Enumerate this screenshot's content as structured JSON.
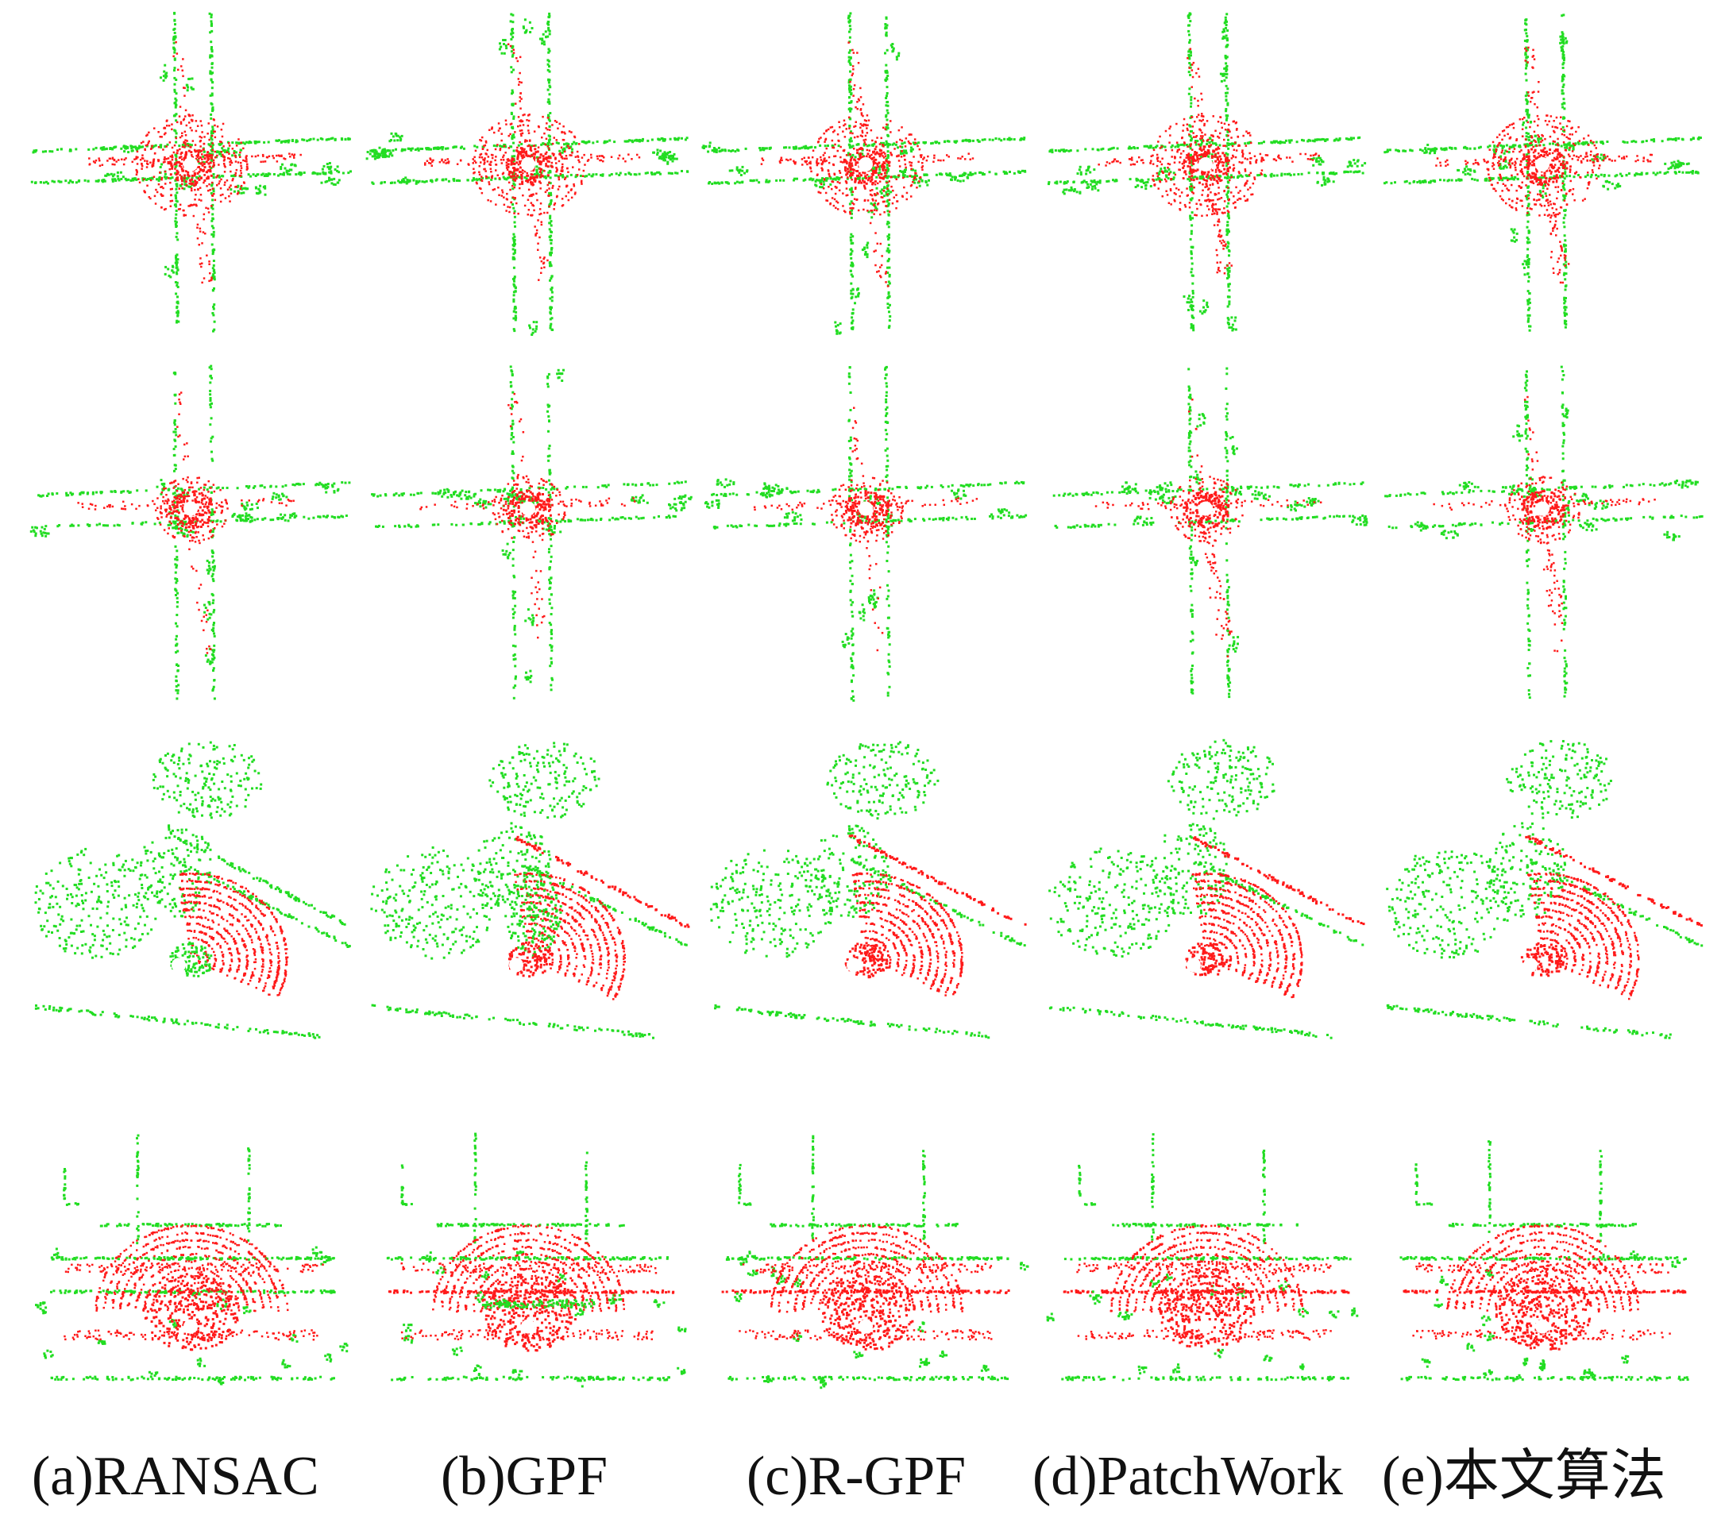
{
  "colors": {
    "ground": "#ff1a1a",
    "nonground": "#22dd22",
    "background": "#ffffff"
  },
  "columns": [
    {
      "label": "(a)RANSAC"
    },
    {
      "label": "(b)GPF"
    },
    {
      "label": "(c)R-GPF"
    },
    {
      "label": "(d)PatchWork"
    },
    {
      "label": "(e)本文算法"
    }
  ],
  "rows": [
    {
      "scene": "cross-intersection"
    },
    {
      "scene": "thin-cross-intersection"
    },
    {
      "scene": "diagonal-street-with-vegetation"
    },
    {
      "scene": "multi-lane-road-with-buildings"
    }
  ]
}
